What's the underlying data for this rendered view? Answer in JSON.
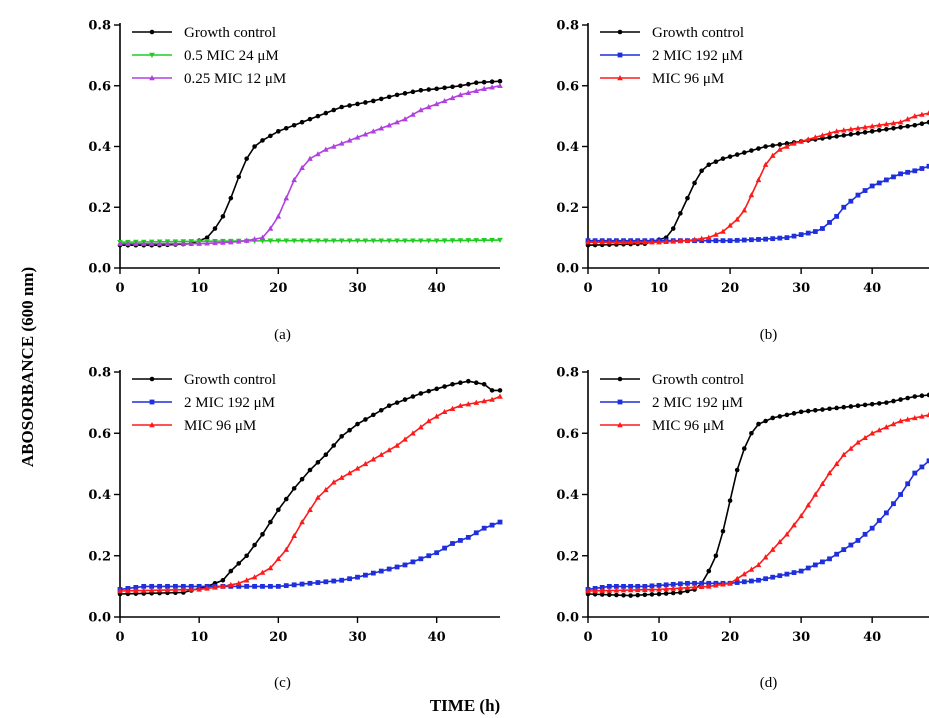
{
  "figure": {
    "ylabel": "ABOSORBANCE (600 nm)",
    "xlabel": "TIME (h)"
  },
  "chart_data": [
    {
      "type": "line",
      "panel": "(a)",
      "xlim": [
        0,
        48
      ],
      "ylim": [
        0,
        0.8
      ],
      "xticks": [
        0,
        10,
        20,
        30,
        40
      ],
      "yticks": [
        0.0,
        0.2,
        0.4,
        0.6,
        0.8
      ],
      "legend_position": "top-left",
      "series": [
        {
          "name": "Growth control",
          "color": "#000000",
          "marker": "circle",
          "points": [
            [
              0,
              0.075
            ],
            [
              5,
              0.075
            ],
            [
              9,
              0.08
            ],
            [
              11,
              0.1
            ],
            [
              12,
              0.13
            ],
            [
              13,
              0.17
            ],
            [
              14,
              0.23
            ],
            [
              15,
              0.3
            ],
            [
              16,
              0.36
            ],
            [
              17,
              0.4
            ],
            [
              18,
              0.42
            ],
            [
              20,
              0.45
            ],
            [
              22,
              0.47
            ],
            [
              25,
              0.5
            ],
            [
              28,
              0.53
            ],
            [
              30,
              0.54
            ],
            [
              32,
              0.55
            ],
            [
              35,
              0.57
            ],
            [
              38,
              0.585
            ],
            [
              40,
              0.59
            ],
            [
              43,
              0.6
            ],
            [
              45,
              0.61
            ],
            [
              48,
              0.615
            ]
          ]
        },
        {
          "name": "0.5 MIC 24 μM",
          "color": "#22cc22",
          "marker": "triangle-down",
          "points": [
            [
              0,
              0.085
            ],
            [
              10,
              0.088
            ],
            [
              20,
              0.09
            ],
            [
              30,
              0.09
            ],
            [
              40,
              0.09
            ],
            [
              48,
              0.092
            ]
          ]
        },
        {
          "name": "0.25 MIC 12 μM",
          "color": "#b040e0",
          "marker": "triangle",
          "points": [
            [
              0,
              0.08
            ],
            [
              10,
              0.08
            ],
            [
              14,
              0.085
            ],
            [
              16,
              0.09
            ],
            [
              18,
              0.1
            ],
            [
              19,
              0.13
            ],
            [
              20,
              0.17
            ],
            [
              21,
              0.23
            ],
            [
              22,
              0.29
            ],
            [
              23,
              0.33
            ],
            [
              24,
              0.36
            ],
            [
              26,
              0.39
            ],
            [
              28,
              0.41
            ],
            [
              30,
              0.43
            ],
            [
              33,
              0.46
            ],
            [
              36,
              0.49
            ],
            [
              38,
              0.52
            ],
            [
              40,
              0.54
            ],
            [
              43,
              0.57
            ],
            [
              46,
              0.59
            ],
            [
              48,
              0.6
            ]
          ]
        }
      ]
    },
    {
      "type": "line",
      "panel": "(b)",
      "xlim": [
        0,
        48
      ],
      "ylim": [
        0,
        0.8
      ],
      "xticks": [
        0,
        10,
        20,
        30,
        40
      ],
      "yticks": [
        0.0,
        0.2,
        0.4,
        0.6,
        0.8
      ],
      "legend_position": "top-left",
      "series": [
        {
          "name": "Growth control",
          "color": "#000000",
          "marker": "circle",
          "points": [
            [
              0,
              0.075
            ],
            [
              8,
              0.08
            ],
            [
              11,
              0.1
            ],
            [
              12,
              0.13
            ],
            [
              13,
              0.18
            ],
            [
              14,
              0.23
            ],
            [
              15,
              0.28
            ],
            [
              16,
              0.32
            ],
            [
              17,
              0.34
            ],
            [
              19,
              0.36
            ],
            [
              22,
              0.38
            ],
            [
              25,
              0.4
            ],
            [
              28,
              0.41
            ],
            [
              31,
              0.42
            ],
            [
              34,
              0.43
            ],
            [
              37,
              0.44
            ],
            [
              40,
              0.45
            ],
            [
              43,
              0.46
            ],
            [
              46,
              0.47
            ],
            [
              48,
              0.48
            ]
          ]
        },
        {
          "name": "2 MIC 192 μM",
          "color": "#1f2fdc",
          "marker": "square",
          "points": [
            [
              0,
              0.09
            ],
            [
              10,
              0.09
            ],
            [
              20,
              0.09
            ],
            [
              25,
              0.095
            ],
            [
              28,
              0.1
            ],
            [
              30,
              0.11
            ],
            [
              32,
              0.12
            ],
            [
              33,
              0.13
            ],
            [
              34,
              0.15
            ],
            [
              35,
              0.17
            ],
            [
              36,
              0.2
            ],
            [
              37,
              0.22
            ],
            [
              38,
              0.24
            ],
            [
              40,
              0.27
            ],
            [
              42,
              0.29
            ],
            [
              44,
              0.31
            ],
            [
              46,
              0.32
            ],
            [
              48,
              0.335
            ]
          ]
        },
        {
          "name": "MIC 96 μM",
          "color": "#ff1a1a",
          "marker": "triangle",
          "points": [
            [
              0,
              0.085
            ],
            [
              10,
              0.085
            ],
            [
              14,
              0.09
            ],
            [
              17,
              0.1
            ],
            [
              19,
              0.12
            ],
            [
              20,
              0.14
            ],
            [
              21,
              0.16
            ],
            [
              22,
              0.19
            ],
            [
              23,
              0.24
            ],
            [
              24,
              0.29
            ],
            [
              25,
              0.34
            ],
            [
              26,
              0.37
            ],
            [
              27,
              0.39
            ],
            [
              29,
              0.41
            ],
            [
              32,
              0.43
            ],
            [
              35,
              0.45
            ],
            [
              38,
              0.46
            ],
            [
              41,
              0.47
            ],
            [
              44,
              0.48
            ],
            [
              46,
              0.5
            ],
            [
              48,
              0.51
            ]
          ]
        }
      ]
    },
    {
      "type": "line",
      "panel": "(c)",
      "xlim": [
        0,
        48
      ],
      "ylim": [
        0,
        0.8
      ],
      "xticks": [
        0,
        10,
        20,
        30,
        40
      ],
      "yticks": [
        0.0,
        0.2,
        0.4,
        0.6,
        0.8
      ],
      "legend_position": "top-left",
      "series": [
        {
          "name": "Growth control",
          "color": "#000000",
          "marker": "circle",
          "points": [
            [
              0,
              0.075
            ],
            [
              8,
              0.08
            ],
            [
              11,
              0.1
            ],
            [
              13,
              0.12
            ],
            [
              14,
              0.15
            ],
            [
              16,
              0.2
            ],
            [
              18,
              0.27
            ],
            [
              20,
              0.35
            ],
            [
              22,
              0.42
            ],
            [
              24,
              0.48
            ],
            [
              26,
              0.53
            ],
            [
              28,
              0.59
            ],
            [
              30,
              0.63
            ],
            [
              32,
              0.66
            ],
            [
              34,
              0.69
            ],
            [
              36,
              0.71
            ],
            [
              38,
              0.73
            ],
            [
              40,
              0.745
            ],
            [
              42,
              0.76
            ],
            [
              44,
              0.77
            ],
            [
              45,
              0.765
            ],
            [
              46,
              0.76
            ],
            [
              47,
              0.74
            ],
            [
              48,
              0.74
            ]
          ]
        },
        {
          "name": "2 MIC 192 μM",
          "color": "#1f2fdc",
          "marker": "square",
          "points": [
            [
              0,
              0.09
            ],
            [
              3,
              0.1
            ],
            [
              8,
              0.1
            ],
            [
              12,
              0.1
            ],
            [
              16,
              0.1
            ],
            [
              20,
              0.1
            ],
            [
              24,
              0.11
            ],
            [
              28,
              0.12
            ],
            [
              30,
              0.13
            ],
            [
              33,
              0.15
            ],
            [
              36,
              0.17
            ],
            [
              38,
              0.19
            ],
            [
              40,
              0.21
            ],
            [
              42,
              0.24
            ],
            [
              44,
              0.26
            ],
            [
              46,
              0.29
            ],
            [
              48,
              0.31
            ]
          ]
        },
        {
          "name": "MIC 96 μM",
          "color": "#ff1a1a",
          "marker": "triangle",
          "points": [
            [
              0,
              0.085
            ],
            [
              10,
              0.09
            ],
            [
              13,
              0.1
            ],
            [
              15,
              0.11
            ],
            [
              17,
              0.13
            ],
            [
              19,
              0.16
            ],
            [
              21,
              0.22
            ],
            [
              23,
              0.31
            ],
            [
              25,
              0.39
            ],
            [
              27,
              0.44
            ],
            [
              29,
              0.47
            ],
            [
              31,
              0.5
            ],
            [
              33,
              0.53
            ],
            [
              35,
              0.56
            ],
            [
              37,
              0.6
            ],
            [
              39,
              0.64
            ],
            [
              41,
              0.67
            ],
            [
              43,
              0.69
            ],
            [
              45,
              0.7
            ],
            [
              47,
              0.71
            ],
            [
              48,
              0.72
            ]
          ]
        }
      ]
    },
    {
      "type": "line",
      "panel": "(d)",
      "xlim": [
        0,
        48
      ],
      "ylim": [
        0,
        0.8
      ],
      "xticks": [
        0,
        10,
        20,
        30,
        40
      ],
      "yticks": [
        0.0,
        0.2,
        0.4,
        0.6,
        0.8
      ],
      "legend_position": "top-left",
      "series": [
        {
          "name": "Growth control",
          "color": "#000000",
          "marker": "circle",
          "points": [
            [
              0,
              0.075
            ],
            [
              6,
              0.07
            ],
            [
              10,
              0.075
            ],
            [
              13,
              0.08
            ],
            [
              15,
              0.09
            ],
            [
              16,
              0.11
            ],
            [
              17,
              0.15
            ],
            [
              18,
              0.2
            ],
            [
              19,
              0.28
            ],
            [
              20,
              0.38
            ],
            [
              21,
              0.48
            ],
            [
              22,
              0.55
            ],
            [
              23,
              0.6
            ],
            [
              24,
              0.63
            ],
            [
              26,
              0.65
            ],
            [
              30,
              0.67
            ],
            [
              34,
              0.68
            ],
            [
              38,
              0.69
            ],
            [
              42,
              0.7
            ],
            [
              46,
              0.72
            ],
            [
              48,
              0.725
            ]
          ]
        },
        {
          "name": "2 MIC 192 μM",
          "color": "#1f2fdc",
          "marker": "square",
          "points": [
            [
              0,
              0.09
            ],
            [
              3,
              0.1
            ],
            [
              8,
              0.1
            ],
            [
              14,
              0.11
            ],
            [
              20,
              0.11
            ],
            [
              24,
              0.12
            ],
            [
              28,
              0.14
            ],
            [
              30,
              0.15
            ],
            [
              32,
              0.17
            ],
            [
              34,
              0.19
            ],
            [
              36,
              0.22
            ],
            [
              38,
              0.25
            ],
            [
              40,
              0.29
            ],
            [
              42,
              0.34
            ],
            [
              44,
              0.4
            ],
            [
              46,
              0.47
            ],
            [
              48,
              0.51
            ]
          ]
        },
        {
          "name": "MIC 96 μM",
          "color": "#ff1a1a",
          "marker": "triangle",
          "points": [
            [
              0,
              0.085
            ],
            [
              10,
              0.09
            ],
            [
              17,
              0.1
            ],
            [
              20,
              0.11
            ],
            [
              22,
              0.14
            ],
            [
              24,
              0.17
            ],
            [
              26,
              0.22
            ],
            [
              28,
              0.27
            ],
            [
              30,
              0.33
            ],
            [
              32,
              0.4
            ],
            [
              34,
              0.47
            ],
            [
              36,
              0.53
            ],
            [
              38,
              0.57
            ],
            [
              40,
              0.6
            ],
            [
              42,
              0.62
            ],
            [
              44,
              0.64
            ],
            [
              46,
              0.65
            ],
            [
              48,
              0.66
            ]
          ]
        }
      ]
    }
  ]
}
